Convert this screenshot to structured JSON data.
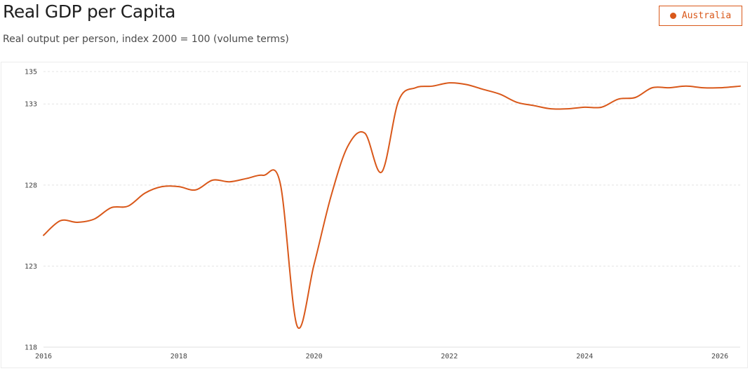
{
  "header": {
    "title": "Real GDP per Capita",
    "subtitle": "Real output per person, index 2000 = 100 (volume terms)"
  },
  "legend": {
    "label": "Australia",
    "color": "#d9581a"
  },
  "chart_data": {
    "type": "line",
    "title": "Real GDP per Capita",
    "subtitle": "Real output per person, index 2000 = 100 (volume terms)",
    "xlabel": "",
    "ylabel": "",
    "xlim": [
      2016.0,
      2026.3
    ],
    "ylim": [
      118,
      135
    ],
    "x_ticks": [
      "2016",
      "2018",
      "2020",
      "2022",
      "2024",
      "2026"
    ],
    "y_ticks": [
      "118",
      "123",
      "128",
      "133",
      "135"
    ],
    "grid": "horizontal dashed",
    "legend_position": "top-right",
    "series": [
      {
        "name": "Australia",
        "color": "#d9581a",
        "x": [
          2016.0,
          2016.25,
          2016.5,
          2016.75,
          2017.0,
          2017.25,
          2017.5,
          2017.75,
          2018.0,
          2018.25,
          2018.5,
          2018.75,
          2019.0,
          2019.25,
          2019.5,
          2019.75,
          2020.0,
          2020.25,
          2020.5,
          2020.75,
          2021.0,
          2021.25,
          2021.5,
          2021.75,
          2022.0,
          2022.25,
          2022.5,
          2022.75,
          2023.0,
          2023.25,
          2023.5,
          2023.75,
          2024.0,
          2024.25,
          2024.5,
          2024.75,
          2025.0,
          2025.25,
          2025.5,
          2025.75,
          2026.0,
          2026.3
        ],
        "values": [
          124.9,
          125.8,
          125.7,
          125.9,
          126.6,
          126.7,
          127.5,
          127.9,
          127.9,
          127.7,
          128.3,
          128.2,
          128.4,
          128.6,
          128.1,
          119.3,
          123.1,
          127.3,
          130.4,
          131.2,
          128.8,
          133.2,
          134.0,
          134.1,
          134.3,
          134.2,
          133.9,
          133.6,
          133.1,
          132.9,
          132.7,
          132.7,
          132.8,
          132.8,
          133.3,
          133.4,
          134.0,
          134.0,
          134.1,
          134.0,
          134.0,
          134.1
        ]
      }
    ]
  }
}
